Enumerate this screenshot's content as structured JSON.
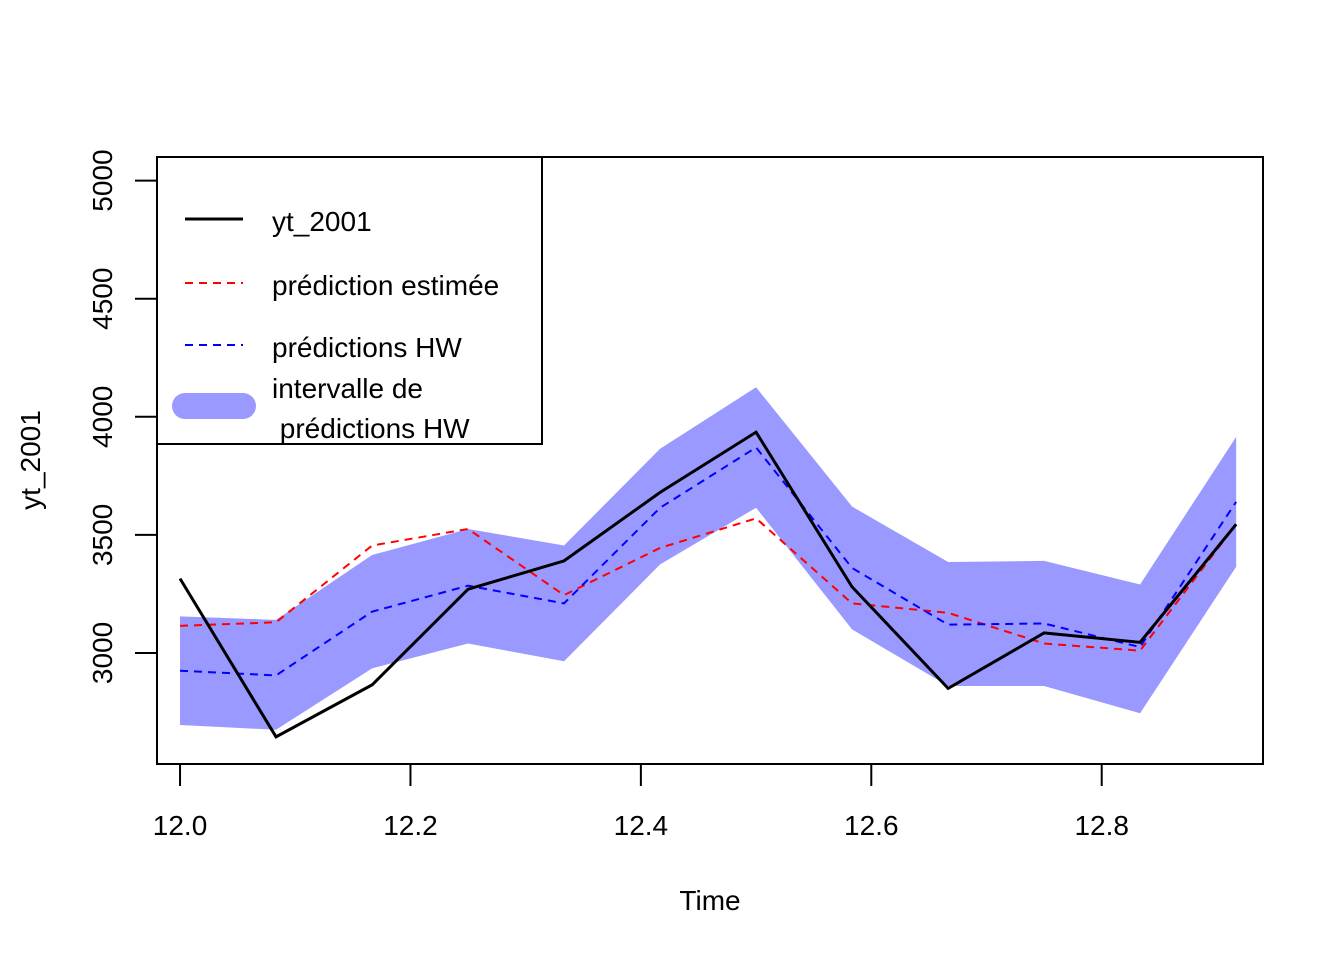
{
  "chart_data": {
    "type": "line",
    "xlabel": "Time",
    "ylabel": "yt_2001",
    "xlim": [
      11.98,
      12.94
    ],
    "ylim": [
      2530,
      5100
    ],
    "x_ticks": [
      "12.0",
      "12.2",
      "12.4",
      "12.6",
      "12.8"
    ],
    "x_tick_values": [
      12.0,
      12.2,
      12.4,
      12.6,
      12.8
    ],
    "y_ticks": [
      "3000",
      "3500",
      "4000",
      "4500",
      "5000"
    ],
    "y_tick_values": [
      3000,
      3500,
      4000,
      4500,
      5000
    ],
    "x": [
      12.0,
      12.0833,
      12.1667,
      12.25,
      12.3333,
      12.4167,
      12.5,
      12.5833,
      12.6667,
      12.75,
      12.8333,
      12.9167
    ],
    "series": [
      {
        "name": "yt_2001",
        "color": "#000000",
        "style": "solid",
        "values": [
          3315,
          2645,
          2865,
          3270,
          3390,
          3680,
          3935,
          3280,
          2850,
          3085,
          3045,
          3545
        ]
      },
      {
        "name": "prédiction estimée",
        "color": "#ff0000",
        "style": "dashed",
        "values": [
          3115,
          3130,
          3455,
          3525,
          3245,
          3445,
          3570,
          3210,
          3170,
          3040,
          3010,
          3545
        ]
      },
      {
        "name": "prédictions HW",
        "color": "#0000ff",
        "style": "dashed",
        "values": [
          2925,
          2905,
          3175,
          3285,
          3210,
          3615,
          3870,
          3360,
          3120,
          3125,
          3025,
          3640
        ]
      }
    ],
    "band": {
      "name": "intervalle de\n prédictions HW",
      "color": "#9999ff",
      "lower": [
        2695,
        2675,
        2935,
        3040,
        2965,
        3375,
        3615,
        3100,
        2860,
        2860,
        2745,
        3365
      ],
      "upper": [
        3155,
        3140,
        3415,
        3525,
        3455,
        3865,
        4125,
        3620,
        3385,
        3390,
        3290,
        3915
      ]
    },
    "legend": {
      "placement": "top-left",
      "entries": [
        {
          "label": "yt_2001",
          "style": "solid",
          "color": "#000000"
        },
        {
          "label": "prédiction estimée",
          "style": "dashed",
          "color": "#ff0000"
        },
        {
          "label": "prédictions HW",
          "style": "dashed",
          "color": "#0000ff"
        },
        {
          "label_line1": "intervalle de",
          "label_line2": " prédictions HW",
          "style": "band",
          "color": "#9999ff"
        }
      ]
    },
    "grid": false
  }
}
